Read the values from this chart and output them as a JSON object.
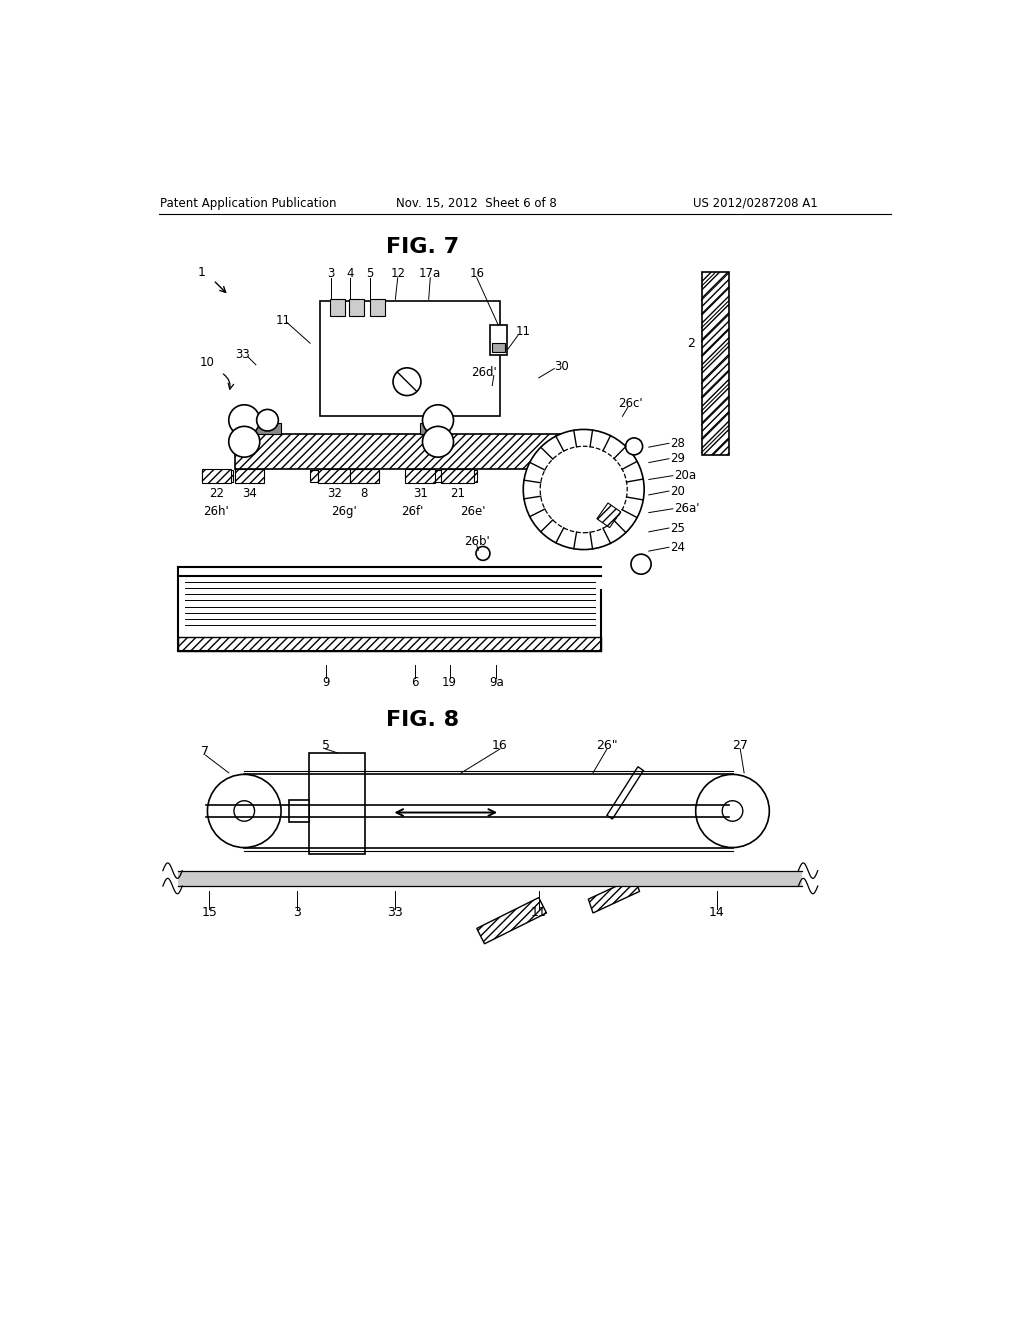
{
  "bg_color": "#ffffff",
  "header_left": "Patent Application Publication",
  "header_mid": "Nov. 15, 2012  Sheet 6 of 8",
  "header_right": "US 2012/0287208 A1",
  "fig7_title": "FIG. 7",
  "fig8_title": "FIG. 8"
}
